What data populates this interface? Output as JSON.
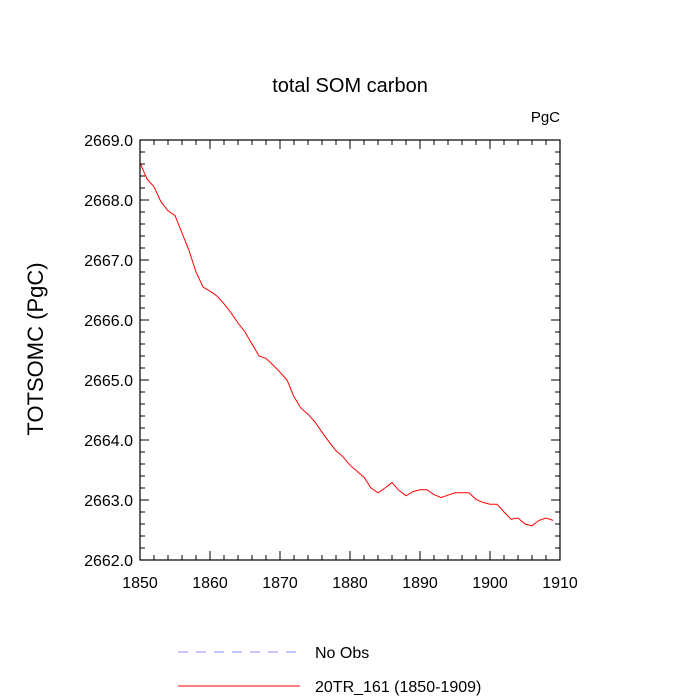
{
  "chart_data": {
    "type": "line",
    "title": "total SOM carbon",
    "units_label": "PgC",
    "xlabel": "",
    "ylabel": "TOTSOMC  (PgC)",
    "xlim": [
      1850,
      1910
    ],
    "ylim": [
      2662.0,
      2669.0
    ],
    "x_ticks": [
      1850,
      1860,
      1870,
      1880,
      1890,
      1900,
      1910
    ],
    "x_tick_labels": [
      "1850",
      "1860",
      "1870",
      "1880",
      "1890",
      "1900",
      "1910"
    ],
    "y_ticks": [
      2662.0,
      2663.0,
      2664.0,
      2665.0,
      2666.0,
      2667.0,
      2668.0,
      2669.0
    ],
    "y_tick_labels": [
      "2662.0",
      "2663.0",
      "2664.0",
      "2665.0",
      "2666.0",
      "2667.0",
      "2668.0",
      "2669.0"
    ],
    "grid": false,
    "legend_position": "bottom",
    "series": [
      {
        "name": "No Obs",
        "color": "#8888ff",
        "style": "dashed",
        "x": [],
        "values": []
      },
      {
        "name": "20TR_161 (1850-1909)",
        "color": "#ff0000",
        "style": "solid",
        "x": [
          1850,
          1851,
          1852,
          1853,
          1854,
          1855,
          1856,
          1857,
          1858,
          1859,
          1860,
          1861,
          1862,
          1863,
          1864,
          1865,
          1866,
          1867,
          1868,
          1869,
          1870,
          1871,
          1872,
          1873,
          1874,
          1875,
          1876,
          1877,
          1878,
          1879,
          1880,
          1881,
          1882,
          1883,
          1884,
          1885,
          1886,
          1887,
          1888,
          1889,
          1890,
          1891,
          1892,
          1893,
          1894,
          1895,
          1896,
          1897,
          1898,
          1899,
          1900,
          1901,
          1902,
          1903,
          1904,
          1905,
          1906,
          1907,
          1908,
          1909
        ],
        "values": [
          2668.62,
          2668.35,
          2668.22,
          2667.97,
          2667.82,
          2667.74,
          2667.45,
          2667.16,
          2666.8,
          2666.55,
          2666.48,
          2666.4,
          2666.27,
          2666.12,
          2665.95,
          2665.8,
          2665.6,
          2665.4,
          2665.36,
          2665.25,
          2665.13,
          2665.0,
          2664.72,
          2664.53,
          2664.43,
          2664.3,
          2664.13,
          2663.97,
          2663.82,
          2663.72,
          2663.58,
          2663.48,
          2663.38,
          2663.2,
          2663.12,
          2663.2,
          2663.29,
          2663.16,
          2663.07,
          2663.14,
          2663.17,
          2663.17,
          2663.09,
          2663.04,
          2663.08,
          2663.12,
          2663.12,
          2663.12,
          2663.01,
          2662.96,
          2662.93,
          2662.93,
          2662.8,
          2662.68,
          2662.7,
          2662.6,
          2662.57,
          2662.66,
          2662.7,
          2662.66
        ]
      }
    ]
  }
}
